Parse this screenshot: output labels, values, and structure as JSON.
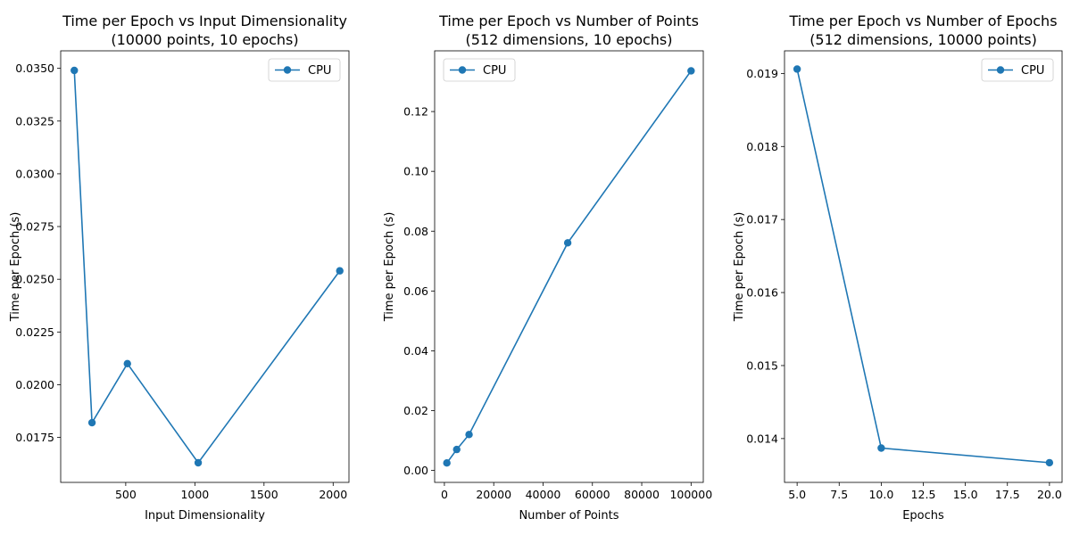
{
  "chart_data": [
    {
      "type": "line",
      "title_line1": "Time per Epoch vs Input Dimensionality",
      "title_line2": "(10000 points, 10 epochs)",
      "xlabel": "Input Dimensionality",
      "ylabel": "Time per Epoch (s)",
      "xlim": [
        29.6,
        2114.4
      ],
      "ylim": [
        0.01537,
        0.03583
      ],
      "xticks": [
        500,
        1000,
        1500,
        2000
      ],
      "xtick_labels": [
        "500",
        "1000",
        "1500",
        "2000"
      ],
      "yticks": [
        0.0175,
        0.02,
        0.0225,
        0.025,
        0.0275,
        0.03,
        0.0325,
        0.035
      ],
      "ytick_labels": [
        "0.0175",
        "0.0200",
        "0.0225",
        "0.0250",
        "0.0275",
        "0.0300",
        "0.0325",
        "0.0350"
      ],
      "legend_position": "upper right",
      "color": "#1f77b4",
      "series": [
        {
          "name": "CPU",
          "x": [
            128,
            256,
            512,
            1024,
            2048
          ],
          "y": [
            0.0349,
            0.0182,
            0.021,
            0.0163,
            0.0254
          ]
        }
      ]
    },
    {
      "type": "line",
      "title_line1": "Time per Epoch vs Number of Points",
      "title_line2": "(512 dimensions, 10 epochs)",
      "xlabel": "Number of Points",
      "ylabel": "Time per Epoch (s)",
      "xlim": [
        -3950,
        104950
      ],
      "ylim": [
        -0.004,
        0.1403
      ],
      "xticks": [
        0,
        20000,
        40000,
        60000,
        80000,
        100000
      ],
      "xtick_labels": [
        "0",
        "20000",
        "40000",
        "60000",
        "80000",
        "100000"
      ],
      "yticks": [
        0,
        0.02,
        0.04,
        0.06,
        0.08,
        0.1,
        0.12
      ],
      "ytick_labels": [
        "0.00",
        "0.02",
        "0.04",
        "0.06",
        "0.08",
        "0.10",
        "0.12"
      ],
      "legend_position": "upper left",
      "color": "#1f77b4",
      "series": [
        {
          "name": "CPU",
          "x": [
            1000,
            5000,
            10000,
            50000,
            100000
          ],
          "y": [
            0.0025,
            0.007,
            0.012,
            0.0761,
            0.1336
          ]
        }
      ]
    },
    {
      "type": "line",
      "title_line1": "Time per Epoch vs Number of Epochs",
      "title_line2": "(512 dimensions, 10000 points)",
      "xlabel": "Epochs",
      "ylabel": "Time per Epoch (s)",
      "xlim": [
        4.25,
        20.75
      ],
      "ylim": [
        0.0134,
        0.01931
      ],
      "xticks": [
        5,
        7.5,
        10,
        12.5,
        15,
        17.5,
        20
      ],
      "xtick_labels": [
        "5.0",
        "7.5",
        "10.0",
        "12.5",
        "15.0",
        "17.5",
        "20.0"
      ],
      "yticks": [
        0.014,
        0.015,
        0.016,
        0.017,
        0.018,
        0.019
      ],
      "ytick_labels": [
        "0.014",
        "0.015",
        "0.016",
        "0.017",
        "0.018",
        "0.019"
      ],
      "legend_position": "upper right",
      "color": "#1f77b4",
      "series": [
        {
          "name": "CPU",
          "x": [
            5,
            10,
            20
          ],
          "y": [
            0.01906,
            0.01387,
            0.01367
          ]
        }
      ]
    }
  ]
}
